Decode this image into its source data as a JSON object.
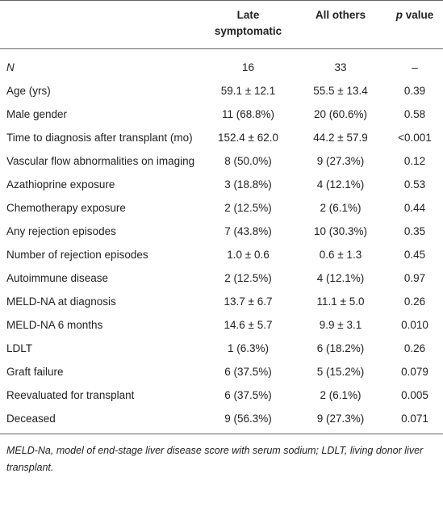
{
  "table": {
    "header": {
      "columns": [
        "Late symptomatic",
        "All others"
      ],
      "p_column": {
        "italic": "p",
        "text": "value"
      }
    },
    "rows": [
      [
        "N",
        "16",
        "33",
        "–"
      ],
      [
        "Age (yrs)",
        "59.1 ± 12.1",
        "55.5 ± 13.4",
        "0.39"
      ],
      [
        "Male gender",
        "11 (68.8%)",
        "20 (60.6%)",
        "0.58"
      ],
      [
        "Time to diagnosis after transplant (mo)",
        "152.4 ± 62.0",
        "44.2 ± 57.9",
        "<0.001"
      ],
      [
        "Vascular flow abnormalities on imaging",
        "8 (50.0%)",
        "9 (27.3%)",
        "0.12"
      ],
      [
        "Azathioprine exposure",
        "3 (18.8%)",
        "4 (12.1%)",
        "0.53"
      ],
      [
        "Chemotherapy exposure",
        "2 (12.5%)",
        "2 (6.1%)",
        "0.44"
      ],
      [
        "Any rejection episodes",
        "7 (43.8%)",
        "10 (30.3%)",
        "0.35"
      ],
      [
        "Number of rejection episodes",
        "1.0 ± 0.6",
        "0.6 ± 1.3",
        "0.45"
      ],
      [
        "Autoimmune disease",
        "2 (12.5%)",
        "4 (12.1%)",
        "0.97"
      ],
      [
        "MELD-NA at diagnosis",
        "13.7 ± 6.7",
        "11.1 ± 5.0",
        "0.26"
      ],
      [
        "MELD-NA 6 months",
        "14.6 ± 5.7",
        "9.9 ± 3.1",
        "0.010"
      ],
      [
        "LDLT",
        "1 (6.3%)",
        "6 (18.2%)",
        "0.26"
      ],
      [
        "Graft failure",
        "6 (37.5%)",
        "5 (15.2%)",
        "0.079"
      ],
      [
        "Reevaluated for transplant",
        "6 (37.5%)",
        "2 (6.1%)",
        "0.005"
      ],
      [
        "Deceased",
        "9 (56.3%)",
        "9 (27.3%)",
        "0.071"
      ]
    ],
    "footnote": "MELD-Na, model of end-stage liver disease score with serum sodium; LDLT, living donor liver transplant."
  }
}
